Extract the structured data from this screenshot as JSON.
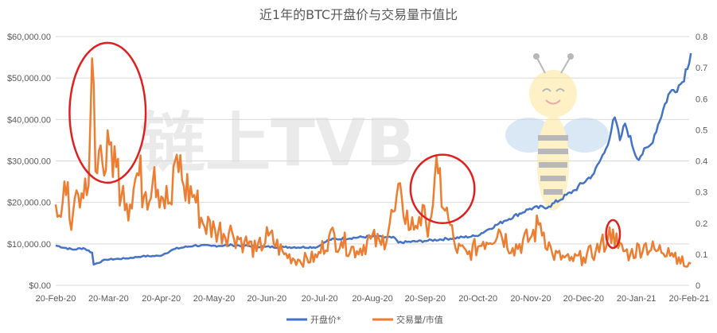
{
  "chart_data": {
    "type": "line",
    "title": "近1年的BTC开盘价与交易量市值比",
    "watermark": "链上TVB",
    "x_tick_labels": [
      "20-Feb-20",
      "20-Mar-20",
      "20-Apr-20",
      "20-May-20",
      "20-Jun-20",
      "20-Jul-20",
      "20-Aug-20",
      "20-Sep-20",
      "20-Oct-20",
      "20-Nov-20",
      "20-Dec-20",
      "20-Jan-21",
      "20-Feb-21"
    ],
    "y_left_ticks": [
      "$0.00",
      "$10,000.00",
      "$20,000.00",
      "$30,000.00",
      "$40,000.00",
      "$50,000.00",
      "$60,000.00"
    ],
    "y_right_ticks": [
      "0",
      "0.1",
      "0.2",
      "0.3",
      "0.4",
      "0.5",
      "0.6",
      "0.7",
      "0.8"
    ],
    "y_left_range": [
      0,
      60000
    ],
    "y_right_range": [
      0,
      0.8
    ],
    "grid": true,
    "legend_position": "bottom",
    "series": [
      {
        "name": "开盘价*",
        "axis": "left",
        "color": "#4472c4",
        "points": [
          [
            "2020-02-20",
            9600
          ],
          [
            "2020-03-01",
            8600
          ],
          [
            "2020-03-07",
            9000
          ],
          [
            "2020-03-12",
            7900
          ],
          [
            "2020-03-13",
            5000
          ],
          [
            "2020-03-20",
            6200
          ],
          [
            "2020-04-01",
            6500
          ],
          [
            "2020-04-10",
            7000
          ],
          [
            "2020-04-20",
            7100
          ],
          [
            "2020-04-29",
            8800
          ],
          [
            "2020-05-10",
            9600
          ],
          [
            "2020-05-20",
            9500
          ],
          [
            "2020-06-01",
            9700
          ],
          [
            "2020-06-20",
            9300
          ],
          [
            "2020-07-01",
            9200
          ],
          [
            "2020-07-20",
            9200
          ],
          [
            "2020-07-27",
            11000
          ],
          [
            "2020-08-20",
            11800
          ],
          [
            "2020-09-03",
            11400
          ],
          [
            "2020-09-05",
            10300
          ],
          [
            "2020-09-20",
            10700
          ],
          [
            "2020-10-20",
            11900
          ],
          [
            "2020-10-27",
            13500
          ],
          [
            "2020-11-05",
            15500
          ],
          [
            "2020-11-20",
            18500
          ],
          [
            "2020-12-01",
            19000
          ],
          [
            "2020-12-16",
            23000
          ],
          [
            "2020-12-27",
            27000
          ],
          [
            "2021-01-03",
            33000
          ],
          [
            "2021-01-08",
            40500
          ],
          [
            "2021-01-11",
            35000
          ],
          [
            "2021-01-14",
            39000
          ],
          [
            "2021-01-21",
            30500
          ],
          [
            "2021-01-29",
            34000
          ],
          [
            "2021-02-08",
            46000
          ],
          [
            "2021-02-16",
            49000
          ],
          [
            "2021-02-21",
            56000
          ]
        ]
      },
      {
        "name": "交易量/市值",
        "axis": "right",
        "color": "#ed7d31",
        "points": [
          [
            "2020-02-20",
            0.26
          ],
          [
            "2020-02-23",
            0.22
          ],
          [
            "2020-02-26",
            0.29
          ],
          [
            "2020-03-01",
            0.23
          ],
          [
            "2020-03-05",
            0.25
          ],
          [
            "2020-03-09",
            0.29
          ],
          [
            "2020-03-12",
            0.73
          ],
          [
            "2020-03-15",
            0.36
          ],
          [
            "2020-03-17",
            0.45
          ],
          [
            "2020-03-20",
            0.37
          ],
          [
            "2020-03-23",
            0.46
          ],
          [
            "2020-03-26",
            0.38
          ],
          [
            "2020-03-30",
            0.32
          ],
          [
            "2020-04-03",
            0.26
          ],
          [
            "2020-04-07",
            0.36
          ],
          [
            "2020-04-12",
            0.3
          ],
          [
            "2020-04-17",
            0.38
          ],
          [
            "2020-04-22",
            0.28
          ],
          [
            "2020-04-27",
            0.26
          ],
          [
            "2020-04-30",
            0.42
          ],
          [
            "2020-05-04",
            0.32
          ],
          [
            "2020-05-10",
            0.29
          ],
          [
            "2020-05-15",
            0.2
          ],
          [
            "2020-05-22",
            0.18
          ],
          [
            "2020-06-01",
            0.17
          ],
          [
            "2020-06-08",
            0.14
          ],
          [
            "2020-06-15",
            0.11
          ],
          [
            "2020-06-22",
            0.16
          ],
          [
            "2020-07-01",
            0.1
          ],
          [
            "2020-07-10",
            0.08
          ],
          [
            "2020-07-20",
            0.09
          ],
          [
            "2020-07-27",
            0.16
          ],
          [
            "2020-08-03",
            0.14
          ],
          [
            "2020-08-12",
            0.11
          ],
          [
            "2020-08-20",
            0.15
          ],
          [
            "2020-08-26",
            0.13
          ],
          [
            "2020-09-03",
            0.24
          ],
          [
            "2020-09-07",
            0.28
          ],
          [
            "2020-09-12",
            0.18
          ],
          [
            "2020-09-17",
            0.22
          ],
          [
            "2020-09-21",
            0.2
          ],
          [
            "2020-09-25",
            0.26
          ],
          [
            "2020-09-28",
            0.36
          ],
          [
            "2020-10-02",
            0.24
          ],
          [
            "2020-10-04",
            0.21
          ],
          [
            "2020-10-08",
            0.12
          ],
          [
            "2020-10-15",
            0.1
          ],
          [
            "2020-10-24",
            0.14
          ],
          [
            "2020-11-02",
            0.18
          ],
          [
            "2020-11-10",
            0.12
          ],
          [
            "2020-11-20",
            0.15
          ],
          [
            "2020-11-26",
            0.2
          ],
          [
            "2020-12-03",
            0.1
          ],
          [
            "2020-12-13",
            0.08
          ],
          [
            "2020-12-21",
            0.09
          ],
          [
            "2020-12-28",
            0.11
          ],
          [
            "2021-01-04",
            0.15
          ],
          [
            "2021-01-07",
            0.18
          ],
          [
            "2021-01-10",
            0.12
          ],
          [
            "2021-01-17",
            0.1
          ],
          [
            "2021-01-25",
            0.13
          ],
          [
            "2021-02-01",
            0.11
          ],
          [
            "2021-02-08",
            0.12
          ],
          [
            "2021-02-14",
            0.09
          ],
          [
            "2021-02-18",
            0.06
          ],
          [
            "2021-02-21",
            0.07
          ]
        ]
      }
    ],
    "annotations": [
      {
        "shape": "ellipse",
        "color": "#e02020",
        "x_range": [
          "2020-02-28",
          "2020-04-12"
        ],
        "y_right_range": [
          0.33,
          0.78
        ]
      },
      {
        "shape": "ellipse",
        "color": "#e02020",
        "x_range": [
          "2020-09-12",
          "2020-10-19"
        ],
        "y_right_range": [
          0.2,
          0.42
        ]
      },
      {
        "shape": "ellipse",
        "color": "#e02020",
        "x_range": [
          "2021-01-03",
          "2021-01-11"
        ],
        "y_right_range": [
          0.12,
          0.21
        ]
      }
    ]
  }
}
